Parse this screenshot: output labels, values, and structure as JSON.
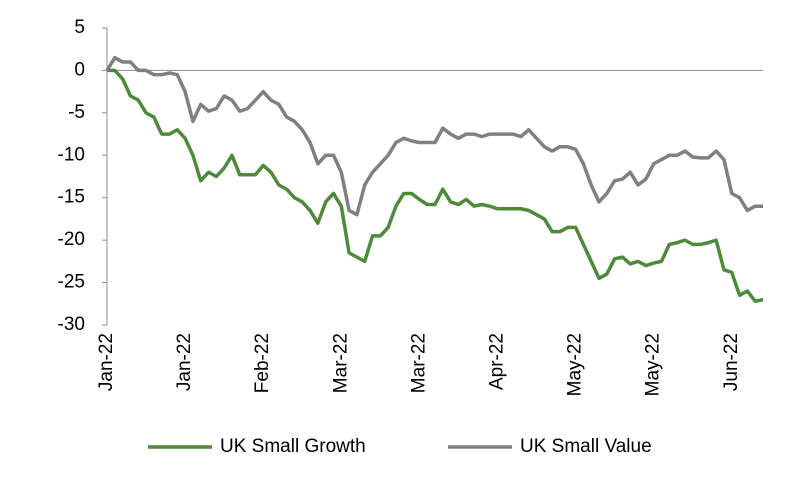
{
  "chart_data": {
    "type": "line",
    "categories": [
      "Jan-22",
      null,
      null,
      null,
      null,
      null,
      null,
      null,
      null,
      null,
      "Jan-22",
      null,
      null,
      null,
      null,
      null,
      null,
      null,
      null,
      null,
      "Feb-22",
      null,
      null,
      null,
      null,
      null,
      null,
      null,
      null,
      null,
      "Mar-22",
      null,
      null,
      null,
      null,
      null,
      null,
      null,
      null,
      null,
      "Mar-22",
      null,
      null,
      null,
      null,
      null,
      null,
      null,
      null,
      null,
      "Apr-22",
      null,
      null,
      null,
      null,
      null,
      null,
      null,
      null,
      null,
      "May-22",
      null,
      null,
      null,
      null,
      null,
      null,
      null,
      null,
      null,
      "May-22",
      null,
      null,
      null,
      null,
      null,
      null,
      null,
      null,
      null,
      "Jun-22",
      null,
      null,
      null,
      null
    ],
    "series": [
      {
        "name": "UK Small Growth",
        "color": "#4e8a3a",
        "values": [
          0,
          0,
          -1,
          -3,
          -3.5,
          -5,
          -5.5,
          -7.5,
          -7.5,
          -7,
          -8,
          -10,
          -13,
          -12,
          -12.5,
          -11.5,
          -10,
          -12.3,
          -12.3,
          -12.3,
          -11.2,
          -12,
          -13.5,
          -14,
          -15,
          -15.5,
          -16.5,
          -18,
          -15.5,
          -14.5,
          -16,
          -21.5,
          -22,
          -22.5,
          -19.5,
          -19.5,
          -18.5,
          -16,
          -14.5,
          -14.5,
          -15.2,
          -15.8,
          -15.8,
          -14,
          -15.5,
          -15.8,
          -15.2,
          -16,
          -15.8,
          -16,
          -16.3,
          -16.3,
          -16.3,
          -16.3,
          -16.5,
          -17,
          -17.5,
          -19,
          -19,
          -18.5,
          -18.5,
          -20.5,
          -22.5,
          -24.5,
          -24,
          -22.2,
          -22,
          -22.8,
          -22.5,
          -23,
          -22.7,
          -22.5,
          -20.5,
          -20.3,
          -20,
          -20.5,
          -20.5,
          -20.3,
          -20,
          -23.5,
          -23.8,
          -26.5,
          -26,
          -27.2,
          -27
        ]
      },
      {
        "name": "UK Small Value",
        "color": "#808080",
        "values": [
          0,
          1.5,
          1,
          1,
          0,
          0,
          -0.5,
          -0.5,
          -0.3,
          -0.5,
          -2.5,
          -6,
          -4,
          -4.8,
          -4.5,
          -3,
          -3.5,
          -4.8,
          -4.5,
          -3.5,
          -2.5,
          -3.5,
          -4,
          -5.5,
          -6,
          -7,
          -8.5,
          -11,
          -10,
          -10,
          -12,
          -16.5,
          -17,
          -13.5,
          -12,
          -11,
          -10,
          -8.5,
          -8,
          -8.3,
          -8.5,
          -8.5,
          -8.5,
          -6.8,
          -7.5,
          -8,
          -7.5,
          -7.5,
          -7.8,
          -7.5,
          -7.5,
          -7.5,
          -7.5,
          -7.8,
          -7,
          -8,
          -9,
          -9.5,
          -9,
          -9,
          -9.3,
          -11,
          -13.5,
          -15.5,
          -14.5,
          -13,
          -12.8,
          -12,
          -13.5,
          -12.8,
          -11,
          -10.5,
          -10,
          -10,
          -9.5,
          -10.2,
          -10.3,
          -10.3,
          -9.5,
          -10.5,
          -14.5,
          -15,
          -16.5,
          -16,
          -16
        ]
      }
    ],
    "ylim": [
      -30,
      5
    ],
    "yticks": [
      -30,
      -25,
      -20,
      -15,
      -10,
      -5,
      0,
      5
    ]
  }
}
